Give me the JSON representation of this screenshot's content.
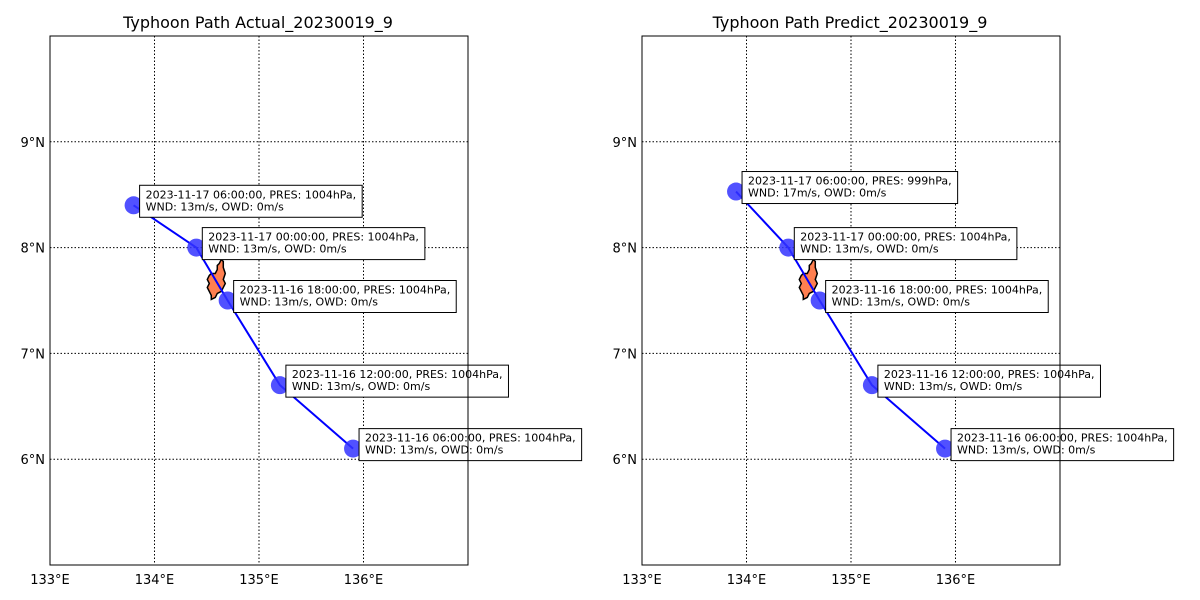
{
  "chart_data": [
    {
      "type": "scatter",
      "title": "Typhoon Path Actual_20230019_9",
      "xlim": [
        133,
        137
      ],
      "ylim": [
        5,
        10
      ],
      "xticks": [
        133,
        134,
        135,
        136
      ],
      "xtick_labels": [
        "133°E",
        "134°E",
        "135°E",
        "136°E"
      ],
      "yticks": [
        6,
        7,
        8,
        9
      ],
      "ytick_labels": [
        "6°N",
        "7°N",
        "8°N",
        "9°N"
      ],
      "grid": true,
      "track_color": "#0000ff",
      "point_color": "#3333ff",
      "land_color": "#ff7f50",
      "points": [
        {
          "lon": 133.8,
          "lat": 8.4,
          "time": "2023-11-17 06:00:00",
          "pres": "1004hPa",
          "wnd": "13m/s",
          "owd": "0m/s",
          "label_line1": "2023-11-17 06:00:00, PRES: 1004hPa,",
          "label_line2": "WND: 13m/s, OWD: 0m/s"
        },
        {
          "lon": 134.4,
          "lat": 8.0,
          "time": "2023-11-17 00:00:00",
          "pres": "1004hPa",
          "wnd": "13m/s",
          "owd": "0m/s",
          "label_line1": "2023-11-17 00:00:00, PRES: 1004hPa,",
          "label_line2": "WND: 13m/s, OWD: 0m/s"
        },
        {
          "lon": 134.7,
          "lat": 7.5,
          "time": "2023-11-16 18:00:00",
          "pres": "1004hPa",
          "wnd": "13m/s",
          "owd": "0m/s",
          "label_line1": "2023-11-16 18:00:00, PRES: 1004hPa,",
          "label_line2": "WND: 13m/s, OWD: 0m/s"
        },
        {
          "lon": 135.2,
          "lat": 6.7,
          "time": "2023-11-16 12:00:00",
          "pres": "1004hPa",
          "wnd": "13m/s",
          "owd": "0m/s",
          "label_line1": "2023-11-16 12:00:00, PRES: 1004hPa,",
          "label_line2": "WND: 13m/s, OWD: 0m/s"
        },
        {
          "lon": 135.9,
          "lat": 6.1,
          "time": "2023-11-16 06:00:00",
          "pres": "1004hPa",
          "wnd": "13m/s",
          "owd": "0m/s",
          "label_line1": "2023-11-16 06:00:00, PRES: 1004hPa,",
          "label_line2": "WND: 13m/s, OWD: 0m/s"
        }
      ]
    },
    {
      "type": "scatter",
      "title": "Typhoon Path Predict_20230019_9",
      "xlim": [
        133,
        137
      ],
      "ylim": [
        5,
        10
      ],
      "xticks": [
        133,
        134,
        135,
        136
      ],
      "xtick_labels": [
        "133°E",
        "134°E",
        "135°E",
        "136°E"
      ],
      "yticks": [
        6,
        7,
        8,
        9
      ],
      "ytick_labels": [
        "6°N",
        "7°N",
        "8°N",
        "9°N"
      ],
      "grid": true,
      "track_color": "#0000ff",
      "point_color": "#3333ff",
      "land_color": "#ff7f50",
      "points": [
        {
          "lon": 133.9,
          "lat": 8.53,
          "time": "2023-11-17 06:00:00",
          "pres": "999hPa",
          "wnd": "17m/s",
          "owd": "0m/s",
          "label_line1": "2023-11-17 06:00:00, PRES: 999hPa,",
          "label_line2": "WND: 17m/s, OWD: 0m/s"
        },
        {
          "lon": 134.4,
          "lat": 8.0,
          "time": "2023-11-17 00:00:00",
          "pres": "1004hPa",
          "wnd": "13m/s",
          "owd": "0m/s",
          "label_line1": "2023-11-17 00:00:00, PRES: 1004hPa,",
          "label_line2": "WND: 13m/s, OWD: 0m/s"
        },
        {
          "lon": 134.7,
          "lat": 7.5,
          "time": "2023-11-16 18:00:00",
          "pres": "1004hPa",
          "wnd": "13m/s",
          "owd": "0m/s",
          "label_line1": "2023-11-16 18:00:00, PRES: 1004hPa,",
          "label_line2": "WND: 13m/s, OWD: 0m/s"
        },
        {
          "lon": 135.2,
          "lat": 6.7,
          "time": "2023-11-16 12:00:00",
          "pres": "1004hPa",
          "wnd": "13m/s",
          "owd": "0m/s",
          "label_line1": "2023-11-16 12:00:00, PRES: 1004hPa,",
          "label_line2": "WND: 13m/s, OWD: 0m/s"
        },
        {
          "lon": 135.9,
          "lat": 6.1,
          "time": "2023-11-16 06:00:00",
          "pres": "1004hPa",
          "wnd": "13m/s",
          "owd": "0m/s",
          "label_line1": "2023-11-16 06:00:00, PRES: 1004hPa,",
          "label_line2": "WND: 13m/s, OWD: 0m/s"
        }
      ]
    }
  ]
}
